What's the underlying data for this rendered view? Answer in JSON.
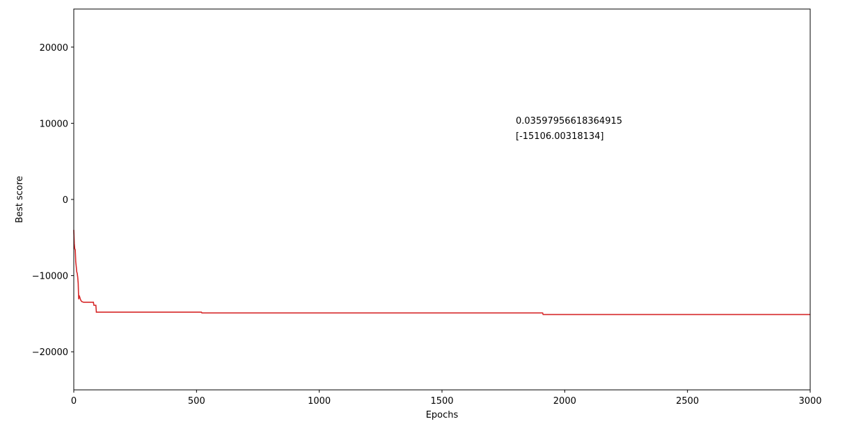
{
  "chart_data": {
    "type": "line",
    "xlabel": "Epochs",
    "ylabel": "Best score",
    "xlim": [
      0,
      3000
    ],
    "ylim": [
      -25000,
      25000
    ],
    "xticks": [
      0,
      500,
      1000,
      1500,
      2000,
      2500,
      3000
    ],
    "yticks": [
      20000,
      10000,
      0,
      -10000,
      -20000
    ],
    "ytick_labels": [
      "20000",
      "10000",
      "0",
      "−10000",
      "−20000"
    ],
    "grid": false,
    "series": [
      {
        "color": "#d62728",
        "points": [
          [
            0,
            -4000
          ],
          [
            2,
            -5800
          ],
          [
            4,
            -6500
          ],
          [
            6,
            -6600
          ],
          [
            8,
            -8200
          ],
          [
            10,
            -8800
          ],
          [
            12,
            -9500
          ],
          [
            14,
            -9700
          ],
          [
            16,
            -10200
          ],
          [
            18,
            -11000
          ],
          [
            20,
            -13100
          ],
          [
            22,
            -12600
          ],
          [
            24,
            -12800
          ],
          [
            26,
            -13000
          ],
          [
            28,
            -13200
          ],
          [
            32,
            -13400
          ],
          [
            40,
            -13500
          ],
          [
            55,
            -13500
          ],
          [
            70,
            -13500
          ],
          [
            80,
            -13500
          ],
          [
            82,
            -13900
          ],
          [
            90,
            -13900
          ],
          [
            92,
            -14800
          ],
          [
            100,
            -14800
          ],
          [
            300,
            -14800
          ],
          [
            520,
            -14800
          ],
          [
            522,
            -14900
          ],
          [
            1000,
            -14900
          ],
          [
            1500,
            -14900
          ],
          [
            1910,
            -14900
          ],
          [
            1912,
            -15106
          ],
          [
            2500,
            -15106
          ],
          [
            3000,
            -15106
          ]
        ]
      }
    ],
    "annotations": [
      "0.03597956618364915",
      "[-15106.00318134]"
    ]
  }
}
